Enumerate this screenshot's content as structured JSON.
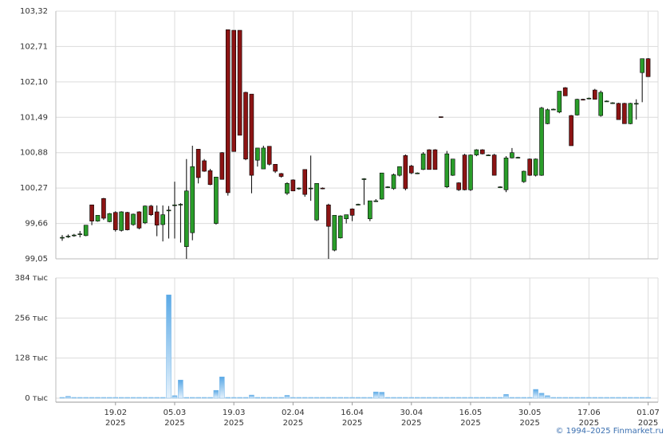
{
  "chart_data": {
    "type": "candlestick",
    "ylim": [
      99.05,
      103.32
    ],
    "yticks": [
      {
        "value": 99.05,
        "label": "99,05"
      },
      {
        "value": 99.66,
        "label": "99,66"
      },
      {
        "value": 100.27,
        "label": "100,27"
      },
      {
        "value": 100.88,
        "label": "100,88"
      },
      {
        "value": 101.49,
        "label": "101,49"
      },
      {
        "value": 102.1,
        "label": "102,10"
      },
      {
        "value": 102.71,
        "label": "102,71"
      },
      {
        "value": 103.32,
        "label": "103,32"
      }
    ],
    "volume_ylim": [
      0,
      384
    ],
    "volume_yticks": [
      {
        "value": 0,
        "label": "0 тыс"
      },
      {
        "value": 128,
        "label": "128 тыс"
      },
      {
        "value": 256,
        "label": "256 тыс"
      },
      {
        "value": 384,
        "label": "384 тыс"
      }
    ],
    "up_color": "#2a9d2a",
    "down_color": "#8c1414",
    "volume_color": "#6fb3e8",
    "grid": true,
    "categories": [
      null,
      null,
      null,
      null,
      null,
      null,
      null,
      null,
      null,
      [
        "19.02",
        "2025"
      ],
      null,
      null,
      null,
      null,
      null,
      null,
      null,
      null,
      null,
      [
        "05.03",
        "2025"
      ],
      null,
      null,
      null,
      null,
      null,
      null,
      null,
      null,
      null,
      [
        "19.03",
        "2025"
      ],
      null,
      null,
      null,
      null,
      null,
      null,
      null,
      null,
      null,
      [
        "02.04",
        "2025"
      ],
      null,
      null,
      null,
      null,
      null,
      null,
      null,
      null,
      null,
      [
        "16.04",
        "2025"
      ],
      null,
      null,
      null,
      null,
      null,
      null,
      null,
      null,
      null,
      [
        "30.04",
        "2025"
      ],
      null,
      null,
      null,
      null,
      null,
      null,
      null,
      null,
      null,
      [
        "16.05",
        "2025"
      ],
      null,
      null,
      null,
      null,
      null,
      null,
      null,
      null,
      null,
      [
        "30.05",
        "2025"
      ],
      null,
      null,
      null,
      null,
      null,
      null,
      null,
      null,
      null,
      [
        "17.06",
        "2025"
      ],
      null,
      null,
      null,
      null,
      null,
      null,
      null,
      null,
      null,
      [
        "01.07",
        "2025"
      ]
    ],
    "open": [
      99.42,
      99.44,
      99.46,
      99.48,
      99.45,
      99.98,
      99.7,
      100.09,
      99.69,
      99.85,
      99.54,
      99.85,
      99.64,
      99.86,
      99.67,
      99.96,
      99.86,
      99.64,
      99.89,
      99.98,
      99.99,
      99.26,
      99.5,
      100.94,
      100.74,
      100.57,
      99.66,
      100.88,
      103.0,
      102.99,
      102.99,
      101.92,
      101.89,
      100.75,
      100.6,
      100.99,
      100.68,
      100.52,
      100.18,
      100.41,
      100.27,
      100.59,
      100.27,
      99.72,
      100.27,
      99.98,
      99.2,
      99.41,
      99.74,
      99.91,
      99.99,
      100.43,
      99.74,
      100.05,
      100.08,
      100.29,
      100.26,
      100.49,
      100.83,
      100.65,
      100.53,
      100.59,
      100.93,
      100.93,
      101.5,
      100.29,
      100.49,
      100.36,
      100.84,
      100.24,
      100.84,
      100.93,
      100.84,
      100.84,
      100.29,
      100.24,
      100.79,
      100.8,
      100.38,
      100.77,
      100.49,
      100.49,
      101.38,
      101.63,
      101.58,
      102.0,
      101.52,
      101.53,
      101.8,
      101.82,
      101.96,
      101.52,
      101.77,
      101.74,
      101.73,
      101.73,
      101.38,
      101.73,
      102.26,
      102.5
    ],
    "high": [
      99.46,
      99.47,
      99.48,
      99.53,
      99.63,
      99.98,
      99.8,
      100.1,
      99.84,
      99.87,
      99.87,
      99.86,
      99.83,
      99.87,
      99.97,
      99.98,
      99.97,
      99.97,
      99.96,
      100.38,
      100.01,
      100.77,
      101.0,
      100.94,
      100.77,
      100.6,
      100.46,
      100.89,
      103.0,
      102.99,
      102.99,
      101.93,
      101.89,
      100.96,
      101.0,
      100.99,
      100.68,
      100.53,
      100.37,
      100.42,
      100.28,
      100.59,
      100.83,
      100.35,
      100.28,
      100.0,
      99.8,
      99.8,
      99.81,
      99.92,
      100.0,
      100.44,
      100.05,
      100.08,
      100.53,
      100.3,
      100.52,
      100.64,
      100.85,
      100.67,
      100.54,
      100.89,
      100.94,
      100.94,
      101.5,
      100.91,
      100.77,
      100.37,
      100.86,
      100.85,
      100.94,
      100.94,
      100.85,
      100.86,
      100.3,
      100.82,
      100.96,
      100.81,
      100.57,
      100.78,
      100.78,
      101.67,
      101.64,
      101.64,
      101.94,
      102.01,
      101.53,
      101.81,
      101.81,
      101.83,
      101.98,
      101.95,
      101.78,
      101.75,
      101.74,
      101.74,
      101.74,
      101.8,
      102.5,
      102.51
    ],
    "low": [
      99.36,
      99.41,
      99.43,
      99.42,
      99.44,
      99.63,
      99.69,
      99.72,
      99.68,
      99.52,
      99.52,
      99.54,
      99.62,
      99.56,
      99.65,
      99.79,
      99.44,
      99.35,
      99.4,
      99.4,
      99.33,
      99.05,
      99.37,
      100.35,
      100.55,
      100.32,
      99.64,
      100.42,
      100.14,
      100.9,
      101.18,
      100.75,
      100.18,
      100.64,
      100.6,
      100.66,
      100.53,
      100.45,
      100.15,
      100.22,
      100.24,
      100.12,
      100.05,
      99.7,
      100.25,
      99.05,
      99.18,
      99.4,
      99.66,
      99.7,
      99.97,
      99.98,
      99.7,
      100.03,
      100.07,
      100.27,
      100.24,
      100.47,
      100.23,
      100.51,
      100.51,
      100.58,
      100.59,
      100.59,
      101.48,
      100.27,
      100.48,
      100.22,
      100.23,
      100.22,
      100.82,
      100.85,
      100.83,
      100.49,
      100.27,
      100.2,
      100.78,
      100.78,
      100.36,
      100.48,
      100.47,
      100.48,
      101.37,
      101.62,
      101.56,
      101.86,
      101.0,
      101.52,
      101.78,
      101.8,
      101.8,
      101.5,
      101.76,
      101.72,
      101.45,
      101.38,
      101.37,
      101.45,
      101.75,
      102.19
    ],
    "close": [
      99.42,
      99.44,
      99.46,
      99.48,
      99.63,
      99.7,
      99.8,
      99.75,
      99.83,
      99.55,
      99.86,
      99.55,
      99.82,
      99.58,
      99.96,
      99.81,
      99.63,
      99.81,
      99.89,
      99.98,
      99.99,
      100.22,
      100.64,
      100.45,
      100.56,
      100.33,
      100.46,
      100.42,
      100.19,
      100.9,
      101.18,
      100.77,
      100.49,
      100.96,
      100.96,
      100.68,
      100.56,
      100.47,
      100.35,
      100.22,
      100.27,
      100.16,
      100.27,
      100.35,
      100.26,
      99.61,
      99.8,
      99.79,
      99.81,
      99.8,
      99.99,
      100.43,
      100.05,
      100.05,
      100.53,
      100.29,
      100.5,
      100.64,
      100.26,
      100.53,
      100.53,
      100.86,
      100.59,
      100.59,
      101.49,
      100.86,
      100.77,
      100.24,
      100.24,
      100.84,
      100.93,
      100.86,
      100.84,
      100.49,
      100.29,
      100.79,
      100.88,
      100.8,
      100.56,
      100.49,
      100.77,
      101.65,
      101.62,
      101.63,
      101.94,
      101.86,
      101.0,
      101.8,
      101.79,
      101.82,
      101.8,
      101.92,
      101.77,
      101.74,
      101.45,
      101.38,
      101.73,
      101.73,
      102.5,
      102.19
    ],
    "volume": [
      2,
      6,
      2,
      2,
      2,
      2,
      2,
      2,
      2,
      2,
      2,
      2,
      2,
      2,
      2,
      2,
      2,
      2,
      330,
      8,
      58,
      2,
      2,
      2,
      2,
      2,
      25,
      68,
      2,
      2,
      2,
      2,
      10,
      2,
      2,
      2,
      2,
      2,
      9,
      2,
      2,
      2,
      2,
      2,
      2,
      2,
      2,
      2,
      2,
      2,
      2,
      2,
      2,
      20,
      19,
      2,
      2,
      2,
      2,
      2,
      2,
      2,
      2,
      2,
      2,
      2,
      2,
      2,
      2,
      2,
      2,
      2,
      2,
      2,
      2,
      12,
      2,
      2,
      2,
      2,
      28,
      16,
      8,
      2,
      2,
      2,
      2,
      2,
      2,
      2,
      2,
      2,
      2,
      2,
      2,
      2,
      2,
      2,
      2,
      2
    ]
  },
  "footer": "© 1994–2025 Finmarket.ru"
}
